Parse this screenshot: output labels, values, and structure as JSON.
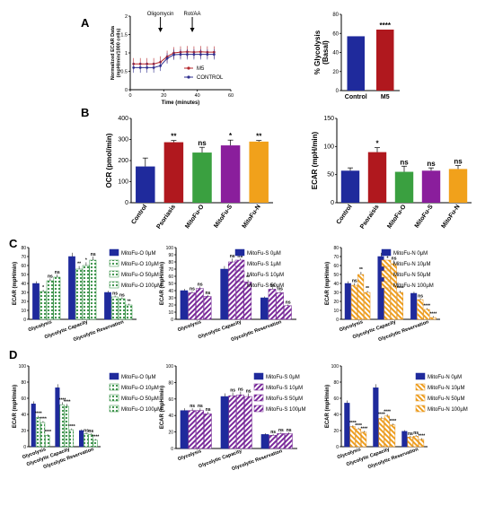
{
  "panel_labels": [
    "A",
    "B",
    "C",
    "D"
  ],
  "chart_data": [
    {
      "id": "A1",
      "type": "line",
      "ylabel": "Normalized ECAR Data",
      "ylabel2": "(mpH/min/1000 cells)",
      "xlabel": "Time (minutes)",
      "x_ticks": [
        0,
        20,
        40,
        60
      ],
      "y_ticks": [
        0.0,
        0.5,
        1.0,
        1.5,
        2.0
      ],
      "xlim": [
        0,
        60
      ],
      "ylim": [
        0,
        2
      ],
      "annotations": [
        "Oligomycin",
        "Rot/AA"
      ],
      "annotation_x": [
        18,
        37
      ],
      "x": [
        2,
        6,
        10,
        14,
        18,
        22,
        26,
        30,
        34,
        38,
        42,
        46,
        50
      ],
      "series": [
        {
          "name": "M5",
          "color": "#b5272d",
          "values": [
            0.7,
            0.7,
            0.7,
            0.7,
            0.75,
            0.9,
            1.0,
            1.02,
            1.03,
            1.02,
            1.03,
            1.02,
            1.02
          ],
          "err": 0.16
        },
        {
          "name": "CONTROL",
          "color": "#2f2f8f",
          "values": [
            0.6,
            0.6,
            0.6,
            0.6,
            0.65,
            0.85,
            0.95,
            0.96,
            0.96,
            0.96,
            0.96,
            0.96,
            0.96
          ],
          "err": 0.14
        }
      ]
    },
    {
      "id": "A2",
      "type": "bar",
      "ylabel": "% Glycolysis",
      "ylabel2": "(Basal)",
      "categories": [
        "Control",
        "M5"
      ],
      "values": [
        57,
        64
      ],
      "colors": [
        "#1f2a9c",
        "#b0181e"
      ],
      "y_ticks": [
        0,
        20,
        40,
        60,
        80
      ],
      "ylim": [
        0,
        80
      ],
      "sig": [
        "",
        "****"
      ]
    },
    {
      "id": "B1",
      "type": "bar",
      "ylabel": "OCR (pmol/min)",
      "categories": [
        "Control",
        "Psoriasis",
        "MitoFu-O",
        "MitoFu-S",
        "MitoFu-N"
      ],
      "values": [
        172,
        287,
        238,
        272,
        290
      ],
      "errors": [
        40,
        8,
        25,
        25,
        5
      ],
      "colors": [
        "#1f2a9c",
        "#b0181e",
        "#3aa040",
        "#8a1e9c",
        "#f1a11b"
      ],
      "y_ticks": [
        0,
        100,
        200,
        300,
        400
      ],
      "ylim": [
        0,
        400
      ],
      "sig": [
        "",
        "**",
        "ns",
        "*",
        "**"
      ]
    },
    {
      "id": "B2",
      "type": "bar",
      "ylabel": "ECAR (mpH/min)",
      "categories": [
        "Control",
        "Psoraisis",
        "MitoFu-O",
        "MitoFu-S",
        "MitoFu-N"
      ],
      "values": [
        57,
        90,
        55,
        57,
        60
      ],
      "errors": [
        5,
        8,
        10,
        5,
        6
      ],
      "colors": [
        "#1f2a9c",
        "#b0181e",
        "#3aa040",
        "#8a1e9c",
        "#f1a11b"
      ],
      "y_ticks": [
        0,
        50,
        100,
        150
      ],
      "ylim": [
        0,
        150
      ],
      "sig": [
        "",
        "*",
        "ns",
        "ns",
        "ns"
      ]
    },
    {
      "id": "C1",
      "type": "bar",
      "ylabel": "ECAR (mpH/min)",
      "categories": [
        "Glycolysis",
        "Glycolytic Capacity",
        "Glycolytic Reservation"
      ],
      "y_ticks": [
        0,
        10,
        20,
        30,
        40,
        50,
        60,
        70,
        80
      ],
      "ylim": [
        0,
        80
      ],
      "pattern": "dot",
      "base": "#2e8b3e",
      "series": [
        {
          "name": "MitoFu-O 0μM",
          "values": [
            40,
            70,
            30
          ],
          "sig": [
            "",
            "",
            ""
          ]
        },
        {
          "name": "MitoFu-O 10μM",
          "values": [
            31,
            56,
            25
          ],
          "sig": [
            "*",
            "**",
            "ns"
          ]
        },
        {
          "name": "MitoFu-O 50μM",
          "values": [
            43,
            60,
            23
          ],
          "sig": [
            "ns",
            "*",
            "ns"
          ]
        },
        {
          "name": "MitoFu-O 100μM",
          "values": [
            47,
            66,
            16
          ],
          "sig": [
            "ns",
            "ns",
            "**"
          ]
        }
      ]
    },
    {
      "id": "C2",
      "type": "bar",
      "ylabel": "ECAR (mpH/min)",
      "categories": [
        "Glycolysis",
        "Glycolytic Capacity",
        "Glycolytic Reservation"
      ],
      "y_ticks": [
        0,
        10,
        20,
        30,
        40,
        50,
        60,
        70,
        80,
        90,
        100
      ],
      "ylim": [
        0,
        100
      ],
      "pattern": "hatch",
      "base": "#6a1b8a",
      "series": [
        {
          "name": "MitoFu-S 0μM",
          "values": [
            40,
            70,
            30
          ],
          "sig": [
            "",
            "",
            ""
          ]
        },
        {
          "name": "MitoFu-S 1μM",
          "values": [
            37,
            80,
            42
          ],
          "sig": [
            "ns",
            "ns",
            "ns"
          ]
        },
        {
          "name": "MitoFu-S 10μM",
          "values": [
            43,
            80,
            37
          ],
          "sig": [
            "ns",
            "ns",
            "ns"
          ]
        },
        {
          "name": "MitoFu-S 50μM",
          "values": [
            32,
            52,
            19
          ],
          "sig": [
            "ns",
            "**",
            "ns"
          ]
        }
      ]
    },
    {
      "id": "C3",
      "type": "bar",
      "ylabel": "ECAR (mpH/min)",
      "categories": [
        "Glycolysis",
        "Glycolytic Capacity",
        "Glycolytic Reservation"
      ],
      "y_ticks": [
        0,
        10,
        20,
        30,
        40,
        50,
        60,
        70,
        80
      ],
      "ylim": [
        0,
        80
      ],
      "pattern": "diag",
      "base": "#e89b1a",
      "series": [
        {
          "name": "MitoFu-N 0μM",
          "values": [
            40,
            70,
            29
          ],
          "sig": [
            "",
            "",
            ""
          ]
        },
        {
          "name": "MitoFu-N 10μM",
          "values": [
            38,
            62,
            22
          ],
          "sig": [
            "ns",
            "*",
            "ns"
          ]
        },
        {
          "name": "MitoFu-N 50μM",
          "values": [
            50,
            62,
            11
          ],
          "sig": [
            "**",
            "ns",
            "****"
          ]
        },
        {
          "name": "MitoFu-N 100μM",
          "values": [
            30,
            30,
            2
          ],
          "sig": [
            "**",
            "****",
            "****"
          ]
        }
      ]
    },
    {
      "id": "D1",
      "type": "bar",
      "ylabel": "ECAR (mpH/min)",
      "categories": [
        "Glycolysis",
        "Glycolytic Capacity",
        "Glycolytic Reservation"
      ],
      "y_ticks": [
        0,
        20,
        40,
        60,
        80,
        100
      ],
      "ylim": [
        0,
        100
      ],
      "pattern": "dot",
      "base": "#2e8b3e",
      "series": [
        {
          "name": "MitoFu-O 0μM",
          "values": [
            53,
            73,
            20
          ],
          "sig": [
            "",
            "",
            ""
          ]
        },
        {
          "name": "MitoFu-O 10μM",
          "values": [
            36,
            52,
            16
          ],
          "sig": [
            "****",
            "****",
            "ns"
          ]
        },
        {
          "name": "MitoFu-O 50μM",
          "values": [
            30,
            50,
            15
          ],
          "sig": [
            "****",
            "****",
            "ns"
          ]
        },
        {
          "name": "MitoFu-O 100μM",
          "values": [
            14,
            21,
            8
          ],
          "sig": [
            "****",
            "****",
            "****"
          ]
        }
      ]
    },
    {
      "id": "D2",
      "type": "bar",
      "ylabel": "ECAR (mpH/min)",
      "categories": [
        "Glycolysis",
        "Glycolytic Capacity",
        "Glycolytic Reservation"
      ],
      "y_ticks": [
        0,
        20,
        40,
        60,
        80,
        100
      ],
      "ylim": [
        0,
        100
      ],
      "pattern": "hatch",
      "base": "#6a1b8a",
      "series": [
        {
          "name": "MitoFu-S 0μM",
          "values": [
            46,
            63,
            17
          ],
          "sig": [
            "",
            "",
            ""
          ]
        },
        {
          "name": "MitoFu-S 10μM",
          "values": [
            46,
            64,
            16
          ],
          "sig": [
            "ns",
            "ns",
            "ns"
          ]
        },
        {
          "name": "MitoFu-S 50μM",
          "values": [
            46,
            65,
            18
          ],
          "sig": [
            "ns",
            "ns",
            "ns"
          ]
        },
        {
          "name": "MitoFu-S 100μM",
          "values": [
            42,
            63,
            18
          ],
          "sig": [
            "ns",
            "ns",
            "ns"
          ]
        }
      ]
    },
    {
      "id": "D3",
      "type": "bar",
      "ylabel": "ECAR (mpH/min)",
      "categories": [
        "Glycolysis",
        "Glycolytic Capacity",
        "Glycolytic Reservation"
      ],
      "y_ticks": [
        0,
        20,
        40,
        60,
        80,
        100
      ],
      "ylim": [
        0,
        100
      ],
      "pattern": "diag",
      "base": "#e89b1a",
      "series": [
        {
          "name": "MitoFu-N 0μM",
          "values": [
            54,
            73,
            19
          ],
          "sig": [
            "",
            "",
            ""
          ]
        },
        {
          "name": "MitoFu-N 10μM",
          "values": [
            25,
            35,
            12
          ],
          "sig": [
            "****",
            "****",
            "ns"
          ]
        },
        {
          "name": "MitoFu-N 50μM",
          "values": [
            22,
            38,
            13
          ],
          "sig": [
            "****",
            "****",
            "ns"
          ]
        },
        {
          "name": "MitoFu-N 100μM",
          "values": [
            18,
            27,
            9
          ],
          "sig": [
            "****",
            "****",
            "****"
          ]
        }
      ]
    }
  ]
}
